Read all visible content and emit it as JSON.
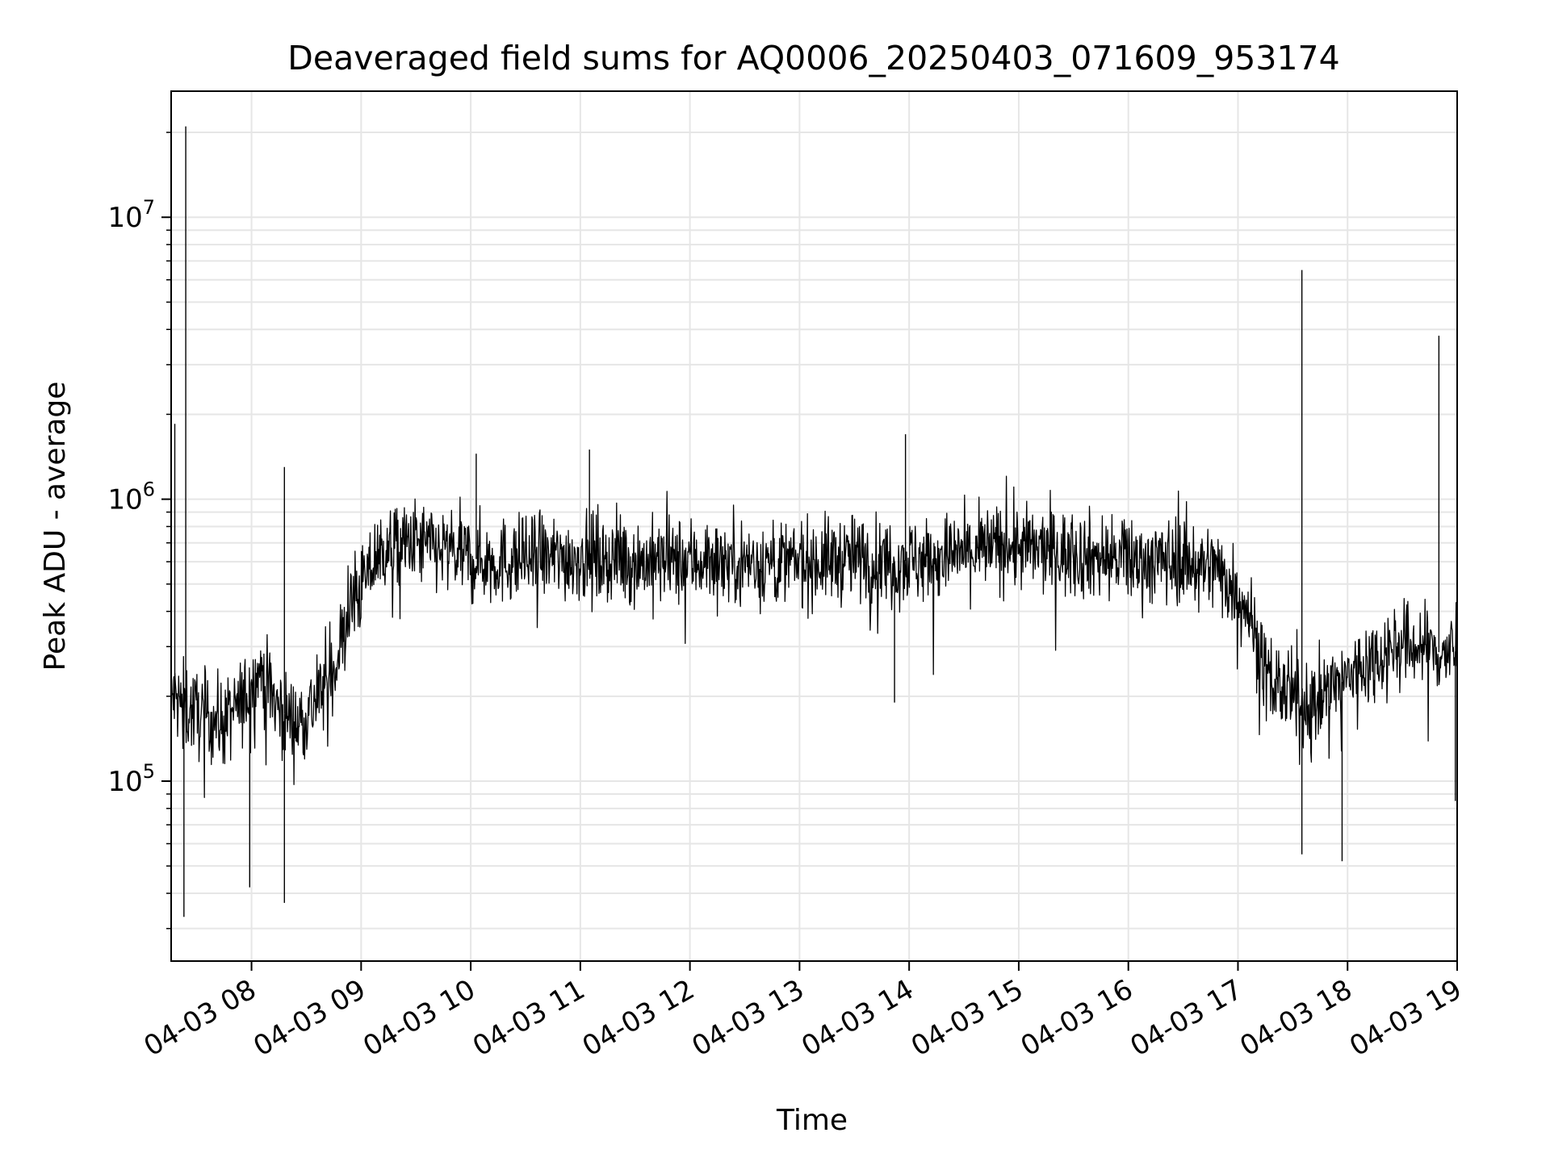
{
  "chart_data": {
    "type": "line",
    "title": "Deaveraged field sums for AQ0006_20250403_071609_953174",
    "xlabel": "Time",
    "ylabel": "Peak ADU - average",
    "x_scale": "time",
    "y_scale": "log",
    "xlim": [
      "2025-04-03 07:16",
      "2025-04-03 19:00"
    ],
    "ylim": [
      23000,
      28000000
    ],
    "grid": true,
    "line_color": "#000000",
    "grid_color": "#e6e6e6",
    "x_ticks": [
      {
        "t": "2025-04-03 08:00",
        "label": "04-03 08"
      },
      {
        "t": "2025-04-03 09:00",
        "label": "04-03 09"
      },
      {
        "t": "2025-04-03 10:00",
        "label": "04-03 10"
      },
      {
        "t": "2025-04-03 11:00",
        "label": "04-03 11"
      },
      {
        "t": "2025-04-03 12:00",
        "label": "04-03 12"
      },
      {
        "t": "2025-04-03 13:00",
        "label": "04-03 13"
      },
      {
        "t": "2025-04-03 14:00",
        "label": "04-03 14"
      },
      {
        "t": "2025-04-03 15:00",
        "label": "04-03 15"
      },
      {
        "t": "2025-04-03 16:00",
        "label": "04-03 16"
      },
      {
        "t": "2025-04-03 17:00",
        "label": "04-03 17"
      },
      {
        "t": "2025-04-03 18:00",
        "label": "04-03 18"
      },
      {
        "t": "2025-04-03 19:00",
        "label": "04-03 19"
      }
    ],
    "y_ticks": [
      {
        "value": 100000,
        "base": "10",
        "exp": "5"
      },
      {
        "value": 1000000,
        "base": "10",
        "exp": "6"
      },
      {
        "value": 10000000,
        "base": "10",
        "exp": "7"
      }
    ],
    "series": [
      {
        "x": [
          "2025-04-03 07:16",
          "2025-04-03 07:25",
          "2025-04-03 07:35",
          "2025-04-03 07:45",
          "2025-04-03 07:55",
          "2025-04-03 08:05",
          "2025-04-03 08:15",
          "2025-04-03 08:25",
          "2025-04-03 08:35",
          "2025-04-03 08:45",
          "2025-04-03 08:55",
          "2025-04-03 09:10",
          "2025-04-03 09:30",
          "2025-04-03 09:50",
          "2025-04-03 10:10",
          "2025-04-03 10:30",
          "2025-04-03 10:50",
          "2025-04-03 11:10",
          "2025-04-03 11:30",
          "2025-04-03 11:50",
          "2025-04-03 12:10",
          "2025-04-03 12:30",
          "2025-04-03 12:50",
          "2025-04-03 13:10",
          "2025-04-03 13:30",
          "2025-04-03 13:50",
          "2025-04-03 14:10",
          "2025-04-03 14:30",
          "2025-04-03 14:50",
          "2025-04-03 15:10",
          "2025-04-03 15:30",
          "2025-04-03 15:50",
          "2025-04-03 16:10",
          "2025-04-03 16:30",
          "2025-04-03 16:50",
          "2025-04-03 17:05",
          "2025-04-03 17:15",
          "2025-04-03 17:25",
          "2025-04-03 17:35",
          "2025-04-03 17:45",
          "2025-04-03 17:55",
          "2025-04-03 18:10",
          "2025-04-03 18:25",
          "2025-04-03 18:40",
          "2025-04-03 18:55",
          "2025-04-03 19:00"
        ],
        "y": [
          200000,
          180000,
          170000,
          160000,
          190000,
          250000,
          180000,
          160000,
          190000,
          250000,
          420000,
          650000,
          700000,
          640000,
          600000,
          610000,
          620000,
          620000,
          600000,
          600000,
          610000,
          600000,
          590000,
          600000,
          620000,
          600000,
          610000,
          640000,
          680000,
          660000,
          640000,
          620000,
          600000,
          610000,
          560000,
          420000,
          240000,
          210000,
          180000,
          200000,
          220000,
          260000,
          300000,
          300000,
          280000,
          290000
        ]
      }
    ],
    "spikes": [
      {
        "x": "2025-04-03 07:18",
        "y": 1850000
      },
      {
        "x": "2025-04-03 07:24",
        "y": 21000000
      },
      {
        "x": "2025-04-03 07:23",
        "y": 33000
      },
      {
        "x": "2025-04-03 07:59",
        "y": 42000
      },
      {
        "x": "2025-04-03 08:18",
        "y": 1300000
      },
      {
        "x": "2025-04-03 08:18",
        "y": 37000
      },
      {
        "x": "2025-04-03 10:03",
        "y": 1450000
      },
      {
        "x": "2025-04-03 11:05",
        "y": 1500000
      },
      {
        "x": "2025-04-03 13:58",
        "y": 1700000
      },
      {
        "x": "2025-04-03 13:52",
        "y": 190000
      },
      {
        "x": "2025-04-03 17:35",
        "y": 6500000
      },
      {
        "x": "2025-04-03 17:35",
        "y": 55000
      },
      {
        "x": "2025-04-03 17:57",
        "y": 52000
      },
      {
        "x": "2025-04-03 18:50",
        "y": 3800000
      },
      {
        "x": "2025-04-03 18:59",
        "y": 85000
      }
    ]
  }
}
